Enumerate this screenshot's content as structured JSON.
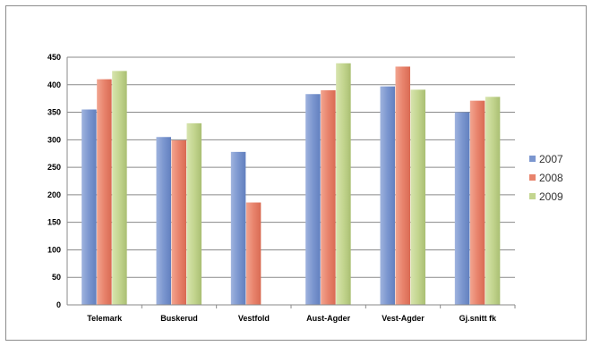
{
  "chart_data": {
    "type": "bar",
    "title": "",
    "xlabel": "",
    "ylabel": "",
    "categories": [
      "Telemark",
      "Buskerud",
      "Vestfold",
      "Aust-Agder",
      "Vest-Agder",
      "Gj.snitt fk"
    ],
    "ylim": [
      0,
      450
    ],
    "yticks": [
      0,
      50,
      100,
      150,
      200,
      250,
      300,
      350,
      400,
      450
    ],
    "grid": true,
    "legend": "right",
    "series": [
      {
        "name": "2007",
        "color": "#7b96cf",
        "values": [
          355,
          305,
          278,
          383,
          397,
          350
        ]
      },
      {
        "name": "2008",
        "color": "#e8836c",
        "values": [
          410,
          299,
          186,
          390,
          433,
          371
        ]
      },
      {
        "name": "2009",
        "color": "#c3d58f",
        "values": [
          425,
          330,
          null,
          439,
          391,
          378
        ]
      }
    ]
  }
}
